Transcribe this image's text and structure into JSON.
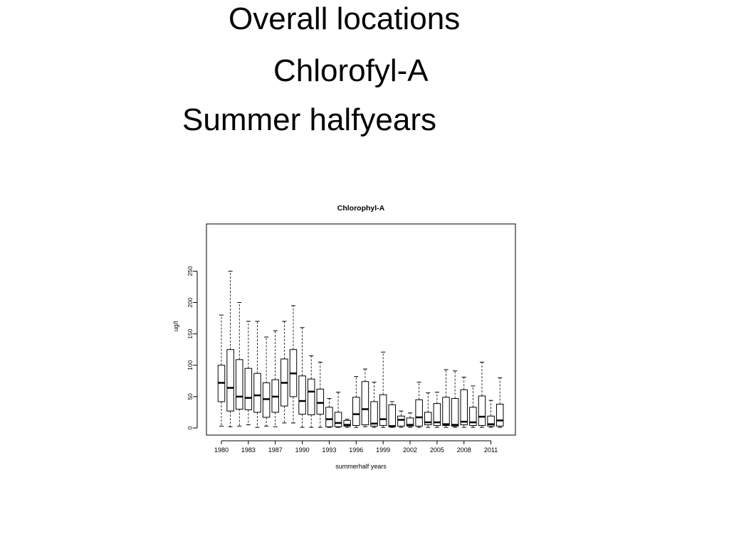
{
  "slide": {
    "title_lines": [
      "Overall locations",
      "Chlorofyl-A",
      "Summer halfyears"
    ]
  },
  "chart_data": {
    "type": "box",
    "title": "Chlorophyl-A",
    "xlabel": "summerhalf years",
    "ylabel": "ug/l",
    "ylim": [
      0,
      250
    ],
    "yticks": [
      0,
      50,
      100,
      150,
      200,
      250
    ],
    "xtick_labels": [
      "1980",
      "1983",
      "1987",
      "1990",
      "1993",
      "1996",
      "1999",
      "2002",
      "2005",
      "2008",
      "2011"
    ],
    "grid": false,
    "boxes": [
      {
        "whisker_low": 3,
        "q1": 42,
        "median": 72,
        "q3": 100,
        "whisker_high": 180
      },
      {
        "whisker_low": 2,
        "q1": 27,
        "median": 64,
        "q3": 125,
        "whisker_high": 250
      },
      {
        "whisker_low": 3,
        "q1": 30,
        "median": 50,
        "q3": 109,
        "whisker_high": 200
      },
      {
        "whisker_low": 5,
        "q1": 29,
        "median": 48,
        "q3": 95,
        "whisker_high": 170
      },
      {
        "whisker_low": 1,
        "q1": 25,
        "median": 52,
        "q3": 87,
        "whisker_high": 170
      },
      {
        "whisker_low": 3,
        "q1": 17,
        "median": 46,
        "q3": 72,
        "whisker_high": 145
      },
      {
        "whisker_low": 2,
        "q1": 25,
        "median": 50,
        "q3": 77,
        "whisker_high": 155
      },
      {
        "whisker_low": 8,
        "q1": 35,
        "median": 72,
        "q3": 110,
        "whisker_high": 170
      },
      {
        "whisker_low": 8,
        "q1": 50,
        "median": 87,
        "q3": 125,
        "whisker_high": 195
      },
      {
        "whisker_low": 1,
        "q1": 22,
        "median": 43,
        "q3": 83,
        "whisker_high": 160
      },
      {
        "whisker_low": 1,
        "q1": 21,
        "median": 58,
        "q3": 78,
        "whisker_high": 115
      },
      {
        "whisker_low": 1,
        "q1": 22,
        "median": 40,
        "q3": 62,
        "whisker_high": 105
      },
      {
        "whisker_low": 1,
        "q1": 2,
        "median": 14,
        "q3": 33,
        "whisker_high": 47
      },
      {
        "whisker_low": 1,
        "q1": 2,
        "median": 8,
        "q3": 25,
        "whisker_high": 57
      },
      {
        "whisker_low": 1,
        "q1": 3,
        "median": 5,
        "q3": 12,
        "whisker_high": 14
      },
      {
        "whisker_low": 1,
        "q1": 4,
        "median": 22,
        "q3": 49,
        "whisker_high": 82
      },
      {
        "whisker_low": 2,
        "q1": 5,
        "median": 30,
        "q3": 74,
        "whisker_high": 94
      },
      {
        "whisker_low": 1,
        "q1": 3,
        "median": 7,
        "q3": 42,
        "whisker_high": 73
      },
      {
        "whisker_low": 1,
        "q1": 4,
        "median": 14,
        "q3": 53,
        "whisker_high": 121
      },
      {
        "whisker_low": 1,
        "q1": 2,
        "median": 3,
        "q3": 37,
        "whisker_high": 42
      },
      {
        "whisker_low": 1,
        "q1": 3,
        "median": 13,
        "q3": 19,
        "whisker_high": 27
      },
      {
        "whisker_low": 1,
        "q1": 3,
        "median": 5,
        "q3": 16,
        "whisker_high": 24
      },
      {
        "whisker_low": 1,
        "q1": 3,
        "median": 17,
        "q3": 45,
        "whisker_high": 73
      },
      {
        "whisker_low": 1,
        "q1": 5,
        "median": 9,
        "q3": 25,
        "whisker_high": 56
      },
      {
        "whisker_low": 1,
        "q1": 4,
        "median": 9,
        "q3": 39,
        "whisker_high": 57
      },
      {
        "whisker_low": 1,
        "q1": 4,
        "median": 6,
        "q3": 49,
        "whisker_high": 93
      },
      {
        "whisker_low": 1,
        "q1": 3,
        "median": 5,
        "q3": 47,
        "whisker_high": 91
      },
      {
        "whisker_low": 1,
        "q1": 5,
        "median": 10,
        "q3": 61,
        "whisker_high": 81
      },
      {
        "whisker_low": 1,
        "q1": 4,
        "median": 9,
        "q3": 33,
        "whisker_high": 67
      },
      {
        "whisker_low": 1,
        "q1": 4,
        "median": 18,
        "q3": 51,
        "whisker_high": 105
      },
      {
        "whisker_low": 1,
        "q1": 3,
        "median": 6,
        "q3": 19,
        "whisker_high": 44
      },
      {
        "whisker_low": 1,
        "q1": 3,
        "median": 12,
        "q3": 38,
        "whisker_high": 80
      }
    ],
    "colors": {
      "box_fill": "#ffffff",
      "stroke": "#000000"
    }
  }
}
